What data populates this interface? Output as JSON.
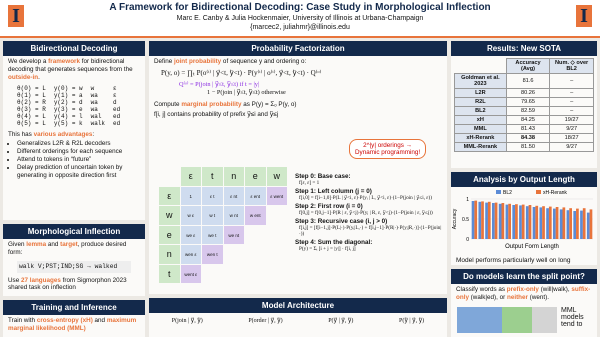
{
  "header": {
    "title": "A Framework for Bidirectional Decoding: Case Study in Morphological Inflection",
    "authors": "Marc E. Canby & Julia Hockenmaier, University of Illinois at Urbana-Champaign",
    "emails": "{marcec2, juliahmr}@illinois.edu"
  },
  "bidirectional": {
    "title": "Bidirectional Decoding",
    "intro": [
      "We develop a ",
      "framework",
      " for bidirectional decoding that generates sequences from the ",
      "outside-in",
      "."
    ],
    "example_rows": [
      [
        "θ(0) = L",
        "y(0) = w",
        "w",
        "ε"
      ],
      [
        "θ(1) = L",
        "y(1) = a",
        "wa",
        "ε"
      ],
      [
        "θ(2) = R",
        "y(2) = d",
        "wa",
        "d"
      ],
      [
        "θ(3) = R",
        "y(3) = e",
        "wa",
        "ed"
      ],
      [
        "θ(4) = L",
        "y(4) = l",
        "wal",
        "ed"
      ],
      [
        "θ(5) = L",
        "y(5) = k",
        "walk",
        "ed"
      ]
    ],
    "advantages": [
      "This has ",
      "various advantages",
      ":"
    ],
    "bullets": [
      "Generalizes L2R & R2L decoders",
      "Different orderings for each sequence",
      "Attend to tokens in “future”",
      "Delay prediction of uncertain token by generating in opposite direction first"
    ]
  },
  "morph": {
    "title": "Morphological Inflection",
    "intro": [
      "Given ",
      "lemma",
      " and ",
      "target",
      ", produce desired form:"
    ],
    "example": "walk V;PST;IND;SG → walked",
    "data": [
      "Use ",
      "27 languages",
      " from Sigmorphon 2023 shared task on inflection"
    ]
  },
  "training": {
    "title": "Training and Inference",
    "text": [
      "Train with ",
      "cross-entropy (xH)",
      " and ",
      "maximum marginal likelihood (MML)"
    ]
  },
  "factorization": {
    "title": "Probability Factorization",
    "define": [
      "Define ",
      "joint probability",
      " of sequence y and ordering o:"
    ],
    "eq_joint": "P(y, o) = ∏ₜ P(o⁽ᵗ⁾ | y⃗<t, y⃖<t) · P(y⁽ᵗ⁾ | o⁽ᵗ⁾, y⃗<t, y⃖<t) · Q⁽ᵒ⁾",
    "eq_q1": "Q⁽ᵒ⁾ = P(join | y⃗≤t, y⃖≤t)   if t = |y|",
    "eq_q2": "1 − P(join | y⃗≤t, y⃖≤t)   otherwise",
    "marginal": [
      "Compute ",
      "marginal probability",
      " as P(y) = Σₒ P(y, o)"
    ],
    "fij": "f[i, j] contains probability of prefix y⃗≤i and y⃖≤j",
    "bubble": [
      "2^|y| orderings →",
      "Dynamic programming!"
    ],
    "col_headers": [
      "ε",
      "t",
      "n",
      "e",
      "w"
    ],
    "row_headers": [
      "ε",
      "w",
      "e",
      "n",
      "t"
    ],
    "cells": [
      [
        "1",
        "ε t",
        "ε nt",
        "ε ent",
        "ε went"
      ],
      [
        "w ε",
        "w t",
        "w nt",
        "w ent"
      ],
      [
        "we ε",
        "we t",
        "we nt"
      ],
      [
        "wen ε",
        "wen t"
      ],
      [
        "went ε"
      ]
    ],
    "steps": [
      [
        "Step 0: Base case:",
        "f[ε, ε] = 1"
      ],
      [
        "Step 1: Left column (j = 0)",
        "f[i,0] = f[i−1,0]·P(L | y⃗<i, ε)·P(yᵢ | L, y⃗<i, ε)·(1−P(join | y⃗≤i, ε))"
      ],
      [
        "Step 2: First row (i = 0)",
        "f[0,j] = f[0,j−1]·P(R | ε, y⃖<j)·P(yⱼ | R, ε, y⃖<j)·(1−P(join | ε, y⃖≤j))"
      ],
      [
        "Step 3: Recursive case (i, j > 0)",
        "f[i,j] = [f[i−1,j]·P(L|·)·P(yᵢ|L,·) + f[i,j−1]·P(R|·)·P(yⱼ|R,·)]·(1−P(join|·))"
      ],
      [
        "Step 4: Sum the diagonal:",
        "P(y) = Σᵢ [i + j = |y|] · f[i, j]"
      ]
    ]
  },
  "architecture": {
    "title": "Model Architecture",
    "heads": [
      "P(join | y⃗, y⃖)",
      "P(order | y⃗, y⃖)",
      "P(y⃗ | y⃗, y⃖)",
      "P(y⃖ | y⃗, y⃖)"
    ]
  },
  "results": {
    "title": "Results: New SOTA",
    "header": [
      "Accuracy (Avg)",
      "Num. ◇ over BL2"
    ],
    "rows": [
      [
        "Goldman et al. 2023",
        "81.6",
        "–"
      ],
      [
        "L2R",
        "80.26",
        "–"
      ],
      [
        "R2L",
        "79.65",
        "–"
      ],
      [
        "BL2",
        "82.59",
        "–"
      ],
      [
        "xH",
        "84.25",
        "19/27"
      ],
      [
        "MML",
        "81.43",
        "9/27"
      ],
      [
        "xH-Rerank",
        "84.38",
        "18/27"
      ],
      [
        "MML-Rerank",
        "81.50",
        "9/27"
      ]
    ]
  },
  "analysis": {
    "title": "Analysis by Output Length",
    "caption": "Model performs particularly well on long outputs.",
    "chart_data": {
      "type": "bar",
      "x_label": "Output Form Length",
      "y_label": "Accuracy",
      "ylim": [
        0,
        1
      ],
      "yticks": [
        0,
        0.5,
        1
      ],
      "series": [
        {
          "name": "BL2",
          "color": "#5b8bd6",
          "values": [
            0.95,
            0.93,
            0.91,
            0.9,
            0.88,
            0.86,
            0.85,
            0.84,
            0.82,
            0.8,
            0.79,
            0.77,
            0.76,
            0.74,
            0.72,
            0.7,
            0.71,
            0.66
          ]
        },
        {
          "name": "xH-Rerank",
          "color": "#e8743b",
          "values": [
            0.96,
            0.94,
            0.93,
            0.91,
            0.9,
            0.88,
            0.87,
            0.86,
            0.85,
            0.83,
            0.82,
            0.81,
            0.8,
            0.79,
            0.77,
            0.76,
            0.77,
            0.74
          ]
        }
      ]
    }
  },
  "split": {
    "title": "Do models learn the split point?",
    "text": [
      "Classify words as ",
      "prefix-only",
      " (will|walk), ",
      "suffix-only",
      " (walk|ed), or ",
      "neither",
      " (went)."
    ],
    "note": "MML models tend to"
  }
}
